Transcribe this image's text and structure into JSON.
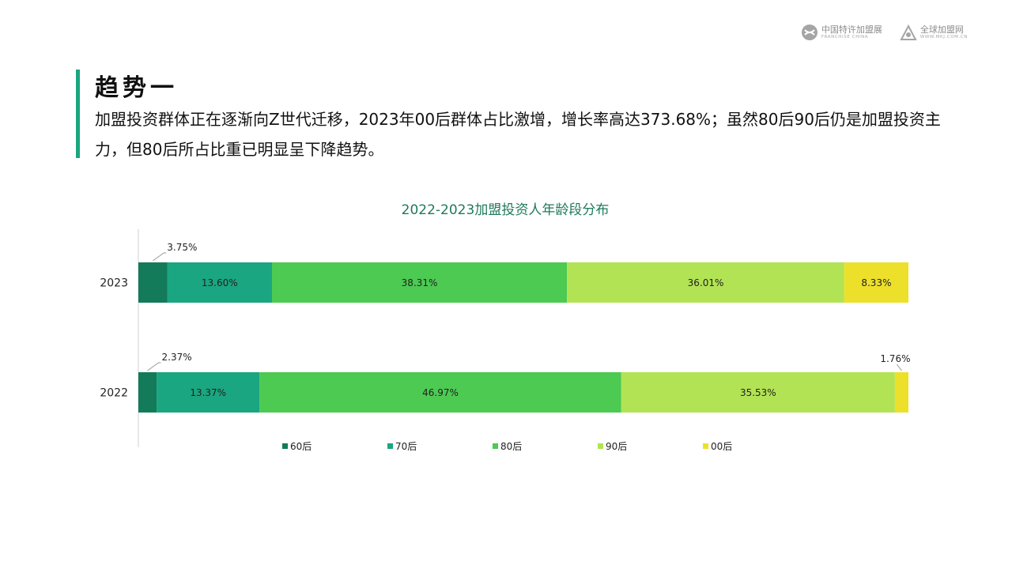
{
  "header": {
    "logo1": {
      "text": "中国特许加盟展",
      "sub": "FRANCHISE CHINA"
    },
    "logo2": {
      "text": "全球加盟网",
      "sub": "WWW.MKJ.COM.CN"
    }
  },
  "section": {
    "title": "趋势一",
    "description": "加盟投资群体正在逐渐向Z世代迁移，2023年00后群体占比激增，增长率高达373.68%；虽然80后90后仍是加盟投资主力，但80后所占比重已明显呈下降趋势。"
  },
  "colors": {
    "accent": "#1aa680",
    "title": "#1f7a5c",
    "series": [
      "#137a5a",
      "#1aa680",
      "#4cca52",
      "#b2e354",
      "#ede02b"
    ]
  },
  "chart_data": {
    "type": "bar",
    "orientation": "horizontal",
    "stacked": true,
    "title": "2022-2023加盟投资人年龄段分布",
    "categories": [
      "2023",
      "2022"
    ],
    "series": [
      {
        "name": "60后",
        "values": [
          3.75,
          2.37
        ],
        "labels": [
          "3.75%",
          "2.37%"
        ]
      },
      {
        "name": "70后",
        "values": [
          13.6,
          13.37
        ],
        "labels": [
          "13.60%",
          "13.37%"
        ]
      },
      {
        "name": "80后",
        "values": [
          38.31,
          46.97
        ],
        "labels": [
          "38.31%",
          "46.97%"
        ]
      },
      {
        "name": "90后",
        "values": [
          36.01,
          35.53
        ],
        "labels": [
          "36.01%",
          "35.53%"
        ]
      },
      {
        "name": "00后",
        "values": [
          8.33,
          1.76
        ],
        "labels": [
          "8.33%",
          "1.76%"
        ]
      }
    ],
    "xlim": [
      0,
      100
    ],
    "grid": false,
    "legend_position": "bottom"
  }
}
